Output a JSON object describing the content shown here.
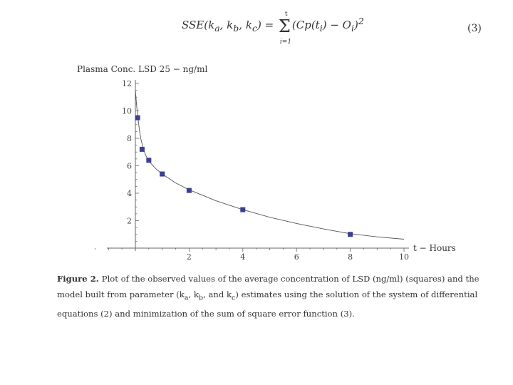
{
  "equation": {
    "lhs": "SSE(k",
    "sub_a": "a",
    "sep1": ", k",
    "sub_b": "b",
    "sep2": ", k",
    "sub_c": "c",
    "rhs_open": ") = ",
    "sum_symbol": "Σ",
    "sum_upper": "t",
    "sum_lower": "i=1",
    "body": "(Cp(t",
    "body_sub": "i",
    "body_mid": ") − O",
    "body_sub2": "i",
    "body_end": ")",
    "exponent": "2",
    "number": "(3)"
  },
  "chart_data": {
    "type": "scatter",
    "title": "Plasma Conc. LSD 25 − ng/ml",
    "xlabel": "t − Hours",
    "ylabel": "Plasma Conc. LSD 25 − ng/ml",
    "xlim": [
      -1.5,
      10
    ],
    "ylim": [
      0,
      12
    ],
    "x_ticks": [
      2,
      4,
      6,
      8,
      10
    ],
    "y_ticks": [
      2,
      4,
      6,
      8,
      10,
      12
    ],
    "grid": false,
    "series": [
      {
        "kind": "observed",
        "marker": "square",
        "color": "#3b3f8f",
        "x": [
          0.083,
          0.25,
          0.5,
          1,
          2,
          4,
          8
        ],
        "y": [
          9.5,
          7.2,
          6.4,
          5.4,
          4.2,
          2.8,
          1.0
        ]
      },
      {
        "kind": "model",
        "color": "#555555",
        "x": [
          0,
          0.05,
          0.1,
          0.15,
          0.2,
          0.3,
          0.4,
          0.5,
          0.75,
          1,
          1.5,
          2,
          3,
          4,
          5,
          6,
          7,
          8,
          9,
          10
        ],
        "y": [
          11.5,
          10.3,
          9.4,
          8.6,
          8.0,
          7.2,
          6.7,
          6.35,
          5.8,
          5.4,
          4.75,
          4.25,
          3.45,
          2.8,
          2.25,
          1.8,
          1.4,
          1.05,
          0.82,
          0.65
        ]
      }
    ]
  },
  "caption": {
    "label": "Figure 2.",
    "line1": "Plot of the observed values of the average concentration of LSD (ng/ml) (squares) and the",
    "line2": "model built from parameter (k",
    "line2_sub_a": "a",
    "line2_mid1": ", k",
    "line2_sub_b": "b",
    "line2_mid2": ", and k",
    "line2_sub_c": "c",
    "line2_end": ") estimates using the solution of the system of differential",
    "line3": "equations (2) and minimization of the sum of square error function (3)."
  }
}
